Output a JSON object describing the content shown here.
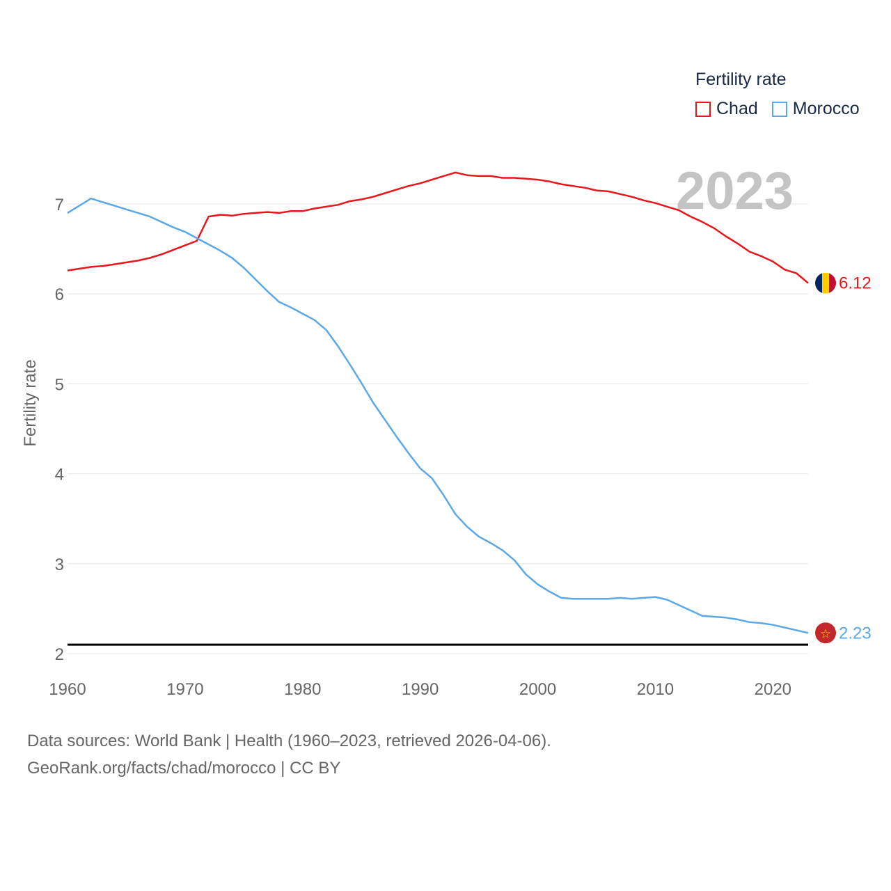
{
  "chart_data": {
    "type": "line",
    "ylabel": "Fertility rate",
    "legend_title": "Fertility rate",
    "year_label": "2023",
    "xlim": [
      1960,
      2023
    ],
    "ylim": [
      2,
      7.5
    ],
    "x_ticks": [
      1960,
      1970,
      1980,
      1990,
      2000,
      2010,
      2020
    ],
    "y_ticks": [
      2,
      3,
      4,
      5,
      6,
      7
    ],
    "reference_line": 2.1,
    "x": [
      1960,
      1961,
      1962,
      1963,
      1964,
      1965,
      1966,
      1967,
      1968,
      1969,
      1970,
      1971,
      1972,
      1973,
      1974,
      1975,
      1976,
      1977,
      1978,
      1979,
      1980,
      1981,
      1982,
      1983,
      1984,
      1985,
      1986,
      1987,
      1988,
      1989,
      1990,
      1991,
      1992,
      1993,
      1994,
      1995,
      1996,
      1997,
      1998,
      1999,
      2000,
      2001,
      2002,
      2003,
      2004,
      2005,
      2006,
      2007,
      2008,
      2009,
      2010,
      2011,
      2012,
      2013,
      2014,
      2015,
      2016,
      2017,
      2018,
      2019,
      2020,
      2021,
      2022,
      2023
    ],
    "series": [
      {
        "name": "Chad",
        "color": "#e8161b",
        "end_label": "6.12",
        "flag": "chad-flag",
        "values": [
          6.26,
          6.28,
          6.3,
          6.31,
          6.33,
          6.35,
          6.37,
          6.4,
          6.44,
          6.49,
          6.54,
          6.59,
          6.86,
          6.88,
          6.87,
          6.89,
          6.9,
          6.91,
          6.9,
          6.92,
          6.92,
          6.95,
          6.97,
          6.99,
          7.03,
          7.05,
          7.08,
          7.12,
          7.16,
          7.2,
          7.23,
          7.27,
          7.31,
          7.35,
          7.32,
          7.31,
          7.31,
          7.29,
          7.29,
          7.28,
          7.27,
          7.25,
          7.22,
          7.2,
          7.18,
          7.15,
          7.14,
          7.11,
          7.08,
          7.04,
          7.01,
          6.97,
          6.93,
          6.86,
          6.8,
          6.73,
          6.64,
          6.56,
          6.47,
          6.42,
          6.36,
          6.27,
          6.23,
          6.12
        ]
      },
      {
        "name": "Morocco",
        "color": "#5ba8e8",
        "end_label": "2.23",
        "flag": "morocco-flag",
        "values": [
          6.9,
          6.98,
          7.06,
          7.02,
          6.98,
          6.94,
          6.9,
          6.86,
          6.8,
          6.74,
          6.69,
          6.62,
          6.55,
          6.48,
          6.4,
          6.29,
          6.16,
          6.03,
          5.91,
          5.85,
          5.78,
          5.71,
          5.6,
          5.42,
          5.22,
          5.01,
          4.79,
          4.6,
          4.41,
          4.23,
          4.06,
          3.95,
          3.76,
          3.55,
          3.41,
          3.3,
          3.23,
          3.15,
          3.04,
          2.88,
          2.77,
          2.69,
          2.62,
          2.61,
          2.61,
          2.61,
          2.61,
          2.62,
          2.61,
          2.62,
          2.63,
          2.6,
          2.54,
          2.48,
          2.42,
          2.41,
          2.4,
          2.38,
          2.35,
          2.34,
          2.32,
          2.29,
          2.26,
          2.23
        ]
      }
    ]
  },
  "footer": {
    "line1": "Data sources: World Bank | Health (1960–2023, retrieved 2026-04-06).",
    "line2": "GeoRank.org/facts/chad/morocco | CC BY"
  }
}
